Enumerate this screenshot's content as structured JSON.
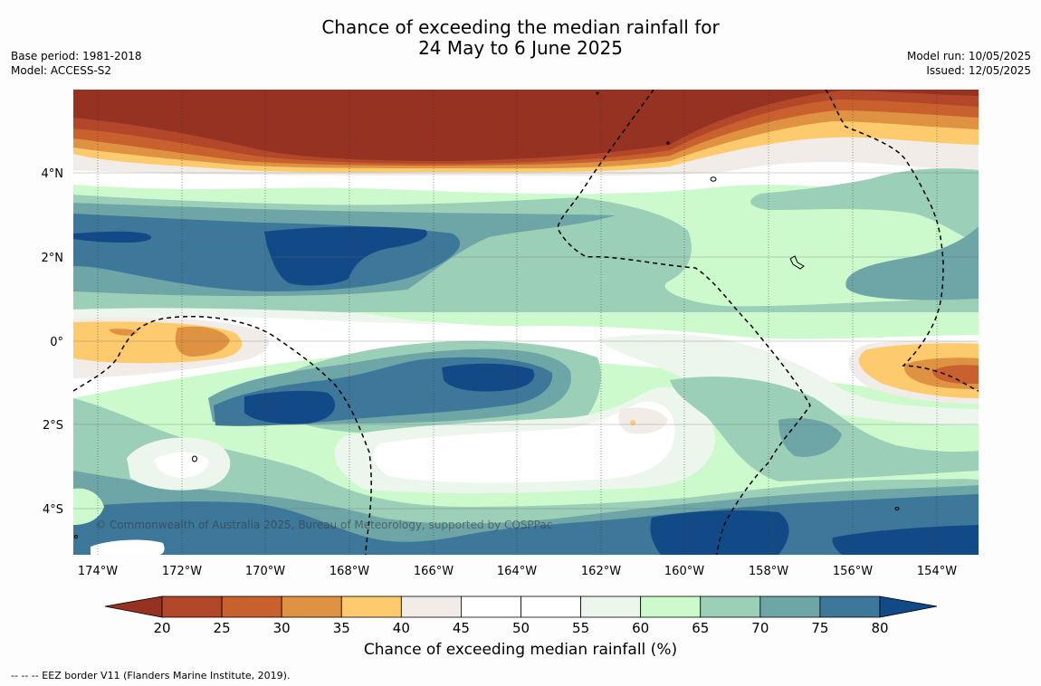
{
  "title_line1": "Chance of exceeding the median rainfall for",
  "title_line2": "24 May to 6 June 2025",
  "base_period": "Base period: 1981-2018",
  "model": "Model: ACCESS-S2",
  "model_run": "Model run: 10/05/2025",
  "issued": "Issued: 12/05/2025",
  "copyright": "© Commonwealth of Australia 2025, Bureau of Meteorology, supported by COSPPac",
  "lon_ticks": [
    "174°W",
    "172°W",
    "170°W",
    "168°W",
    "166°W",
    "164°W",
    "162°W",
    "160°W",
    "158°W",
    "156°W",
    "154°W"
  ],
  "lat_ticks": [
    "4°N",
    "2°N",
    "0°",
    "2°S",
    "4°S"
  ],
  "colorbar": {
    "labels": [
      "20",
      "25",
      "30",
      "35",
      "40",
      "45",
      "50",
      "55",
      "60",
      "65",
      "70",
      "75",
      "80"
    ],
    "colors": [
      "#b2472a",
      "#c9612f",
      "#df9241",
      "#fdcb6e",
      "#f1ece7",
      "#ffffff",
      "#ffffff",
      "#ecf6ec",
      "#ccfacc",
      "#9ccfb8",
      "#6ea5a7",
      "#3d7799"
    ],
    "below_color": "#963222",
    "above_color": "#124a88",
    "title": "Chance of exceeding median rainfall (%)"
  },
  "footnote": "--  --  -- EEZ border V11 (Flanders Marine Institute, 2019)."
}
